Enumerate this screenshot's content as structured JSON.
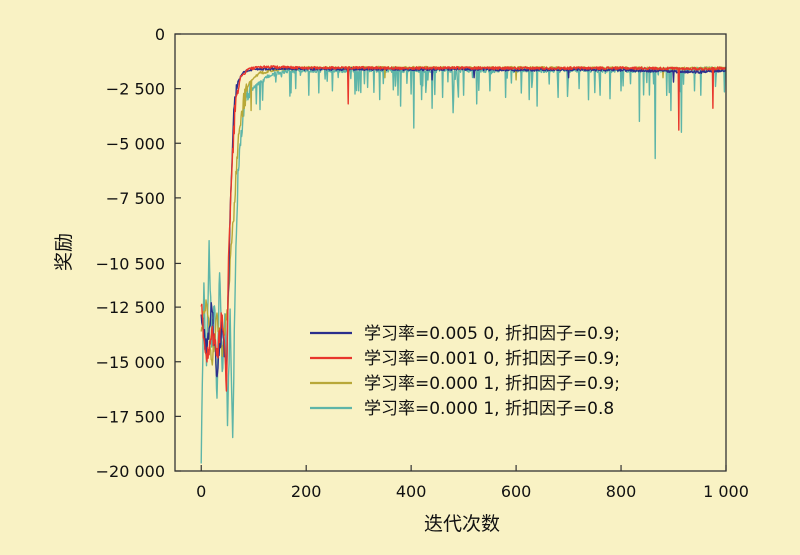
{
  "chart_data": {
    "type": "line",
    "title": "",
    "xlabel": "迭代次数",
    "ylabel": "奖励",
    "xlim": [
      -50,
      1000
    ],
    "ylim": [
      -20000,
      0
    ],
    "x_ticks": [
      0,
      200,
      400,
      600,
      800,
      1000
    ],
    "x_tick_labels": [
      "0",
      "200",
      "400",
      "600",
      "800",
      "1 000"
    ],
    "y_ticks": [
      0,
      -2500,
      -5000,
      -7500,
      -10500,
      -12500,
      -15000,
      -17500,
      -20000
    ],
    "y_tick_labels": [
      "0",
      "−2 500",
      "−5 000",
      "−7 500",
      "−10 500",
      "−12 500",
      "−15 000",
      "−17 500",
      "−20 000"
    ],
    "grid": false,
    "legend_position": "lower-right",
    "series": [
      {
        "name": "学习率=0.005 0, 折扣因子=0.9;",
        "color": "#2b2f8c",
        "points": [
          [
            0,
            -13000
          ],
          [
            10,
            -14500
          ],
          [
            20,
            -12500
          ],
          [
            30,
            -15500
          ],
          [
            40,
            -13200
          ],
          [
            48,
            -15800
          ],
          [
            55,
            -8000
          ],
          [
            62,
            -3500
          ],
          [
            70,
            -2200
          ],
          [
            80,
            -1750
          ],
          [
            100,
            -1600
          ],
          [
            150,
            -1580
          ],
          [
            200,
            -1600
          ],
          [
            300,
            -1600
          ],
          [
            400,
            -1620
          ],
          [
            500,
            -1600
          ],
          [
            600,
            -1650
          ],
          [
            700,
            -1620
          ],
          [
            800,
            -1650
          ],
          [
            880,
            -1700
          ],
          [
            950,
            -1750
          ],
          [
            1000,
            -1650
          ]
        ],
        "dips": [
          [
            440,
            -2100
          ],
          [
            520,
            -2000
          ],
          [
            700,
            -2000
          ],
          [
            900,
            -2200
          ]
        ]
      },
      {
        "name": "学习率=0.001 0, 折扣因子=0.9;",
        "color": "#e8362c",
        "points": [
          [
            0,
            -12500
          ],
          [
            10,
            -15000
          ],
          [
            20,
            -13500
          ],
          [
            30,
            -14800
          ],
          [
            40,
            -12800
          ],
          [
            48,
            -16000
          ],
          [
            52,
            -10500
          ],
          [
            58,
            -6500
          ],
          [
            65,
            -3200
          ],
          [
            75,
            -2000
          ],
          [
            90,
            -1600
          ],
          [
            120,
            -1500
          ],
          [
            200,
            -1550
          ],
          [
            300,
            -1550
          ],
          [
            400,
            -1560
          ],
          [
            500,
            -1550
          ],
          [
            600,
            -1570
          ],
          [
            700,
            -1560
          ],
          [
            800,
            -1560
          ],
          [
            900,
            -1580
          ],
          [
            960,
            -1600
          ],
          [
            1000,
            -1550
          ]
        ],
        "dips": [
          [
            280,
            -3200
          ],
          [
            910,
            -4400
          ],
          [
            975,
            -3400
          ]
        ]
      },
      {
        "name": "学习率=0.000 1, 折扣因子=0.9;",
        "color": "#b8a838",
        "points": [
          [
            0,
            -13500
          ],
          [
            10,
            -12000
          ],
          [
            20,
            -15000
          ],
          [
            30,
            -13000
          ],
          [
            40,
            -14500
          ],
          [
            50,
            -12500
          ],
          [
            60,
            -9000
          ],
          [
            70,
            -5000
          ],
          [
            80,
            -3200
          ],
          [
            90,
            -2300
          ],
          [
            110,
            -1800
          ],
          [
            150,
            -1600
          ],
          [
            200,
            -1550
          ],
          [
            300,
            -1550
          ],
          [
            400,
            -1540
          ],
          [
            500,
            -1560
          ],
          [
            600,
            -1550
          ],
          [
            700,
            -1560
          ],
          [
            800,
            -1560
          ],
          [
            900,
            -1580
          ],
          [
            1000,
            -1570
          ]
        ],
        "dips": [
          [
            95,
            -3500
          ],
          [
            350,
            -2000
          ],
          [
            600,
            -2100
          ],
          [
            880,
            -2000
          ]
        ]
      },
      {
        "name": "学习率=0.000 1, 折扣因子=0.8",
        "color": "#5eb5a8",
        "points": [
          [
            0,
            -19400
          ],
          [
            5,
            -11500
          ],
          [
            10,
            -15500
          ],
          [
            15,
            -9200
          ],
          [
            20,
            -14500
          ],
          [
            25,
            -12000
          ],
          [
            30,
            -16800
          ],
          [
            35,
            -10500
          ],
          [
            40,
            -15500
          ],
          [
            45,
            -12800
          ],
          [
            50,
            -17500
          ],
          [
            55,
            -13000
          ],
          [
            60,
            -18300
          ],
          [
            65,
            -11000
          ],
          [
            70,
            -6500
          ],
          [
            75,
            -4800
          ],
          [
            80,
            -3800
          ],
          [
            85,
            -3000
          ],
          [
            95,
            -2500
          ],
          [
            110,
            -2300
          ],
          [
            130,
            -1900
          ],
          [
            160,
            -1700
          ],
          [
            200,
            -1650
          ],
          [
            300,
            -1650
          ],
          [
            400,
            -1650
          ],
          [
            500,
            -1650
          ],
          [
            600,
            -1650
          ],
          [
            700,
            -1650
          ],
          [
            800,
            -1650
          ],
          [
            900,
            -1650
          ],
          [
            1000,
            -1600
          ]
        ],
        "dips": [
          [
            105,
            -3200
          ],
          [
            180,
            -2500
          ],
          [
            205,
            -2800
          ],
          [
            250,
            -2600
          ],
          [
            300,
            -2600
          ],
          [
            340,
            -3000
          ],
          [
            380,
            -3300
          ],
          [
            405,
            -4300
          ],
          [
            420,
            -3000
          ],
          [
            440,
            -3400
          ],
          [
            460,
            -2900
          ],
          [
            480,
            -3600
          ],
          [
            500,
            -2800
          ],
          [
            525,
            -3200
          ],
          [
            550,
            -2600
          ],
          [
            580,
            -2900
          ],
          [
            610,
            -2700
          ],
          [
            640,
            -3300
          ],
          [
            680,
            -2900
          ],
          [
            720,
            -2500
          ],
          [
            760,
            -2800
          ],
          [
            800,
            -2600
          ],
          [
            835,
            -4000
          ],
          [
            865,
            -5700
          ],
          [
            895,
            -3500
          ],
          [
            915,
            -4500
          ],
          [
            940,
            -2600
          ],
          [
            980,
            -2400
          ]
        ]
      }
    ]
  }
}
